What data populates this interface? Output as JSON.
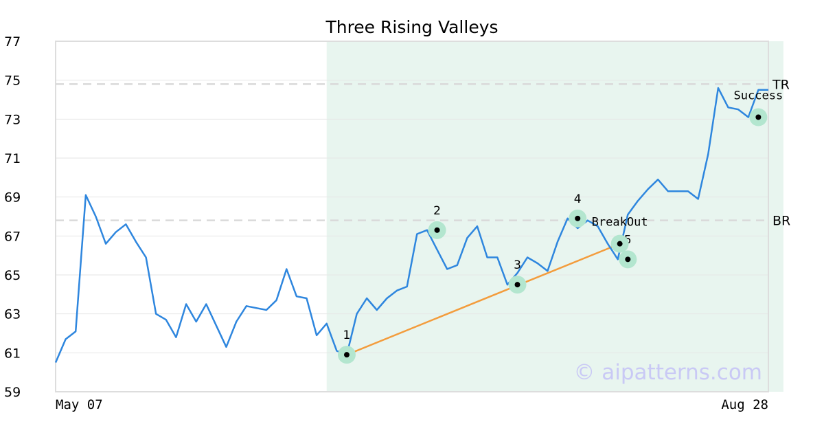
{
  "chart_data": {
    "type": "line",
    "title": "Three Rising Valleys",
    "xlabel": "",
    "ylabel": "",
    "ylim": [
      59,
      77
    ],
    "yticks": [
      "59",
      "61",
      "63",
      "65",
      "67",
      "69",
      "71",
      "73",
      "75",
      "77"
    ],
    "x_first_label": "May 07",
    "x_last_label": "Aug 28",
    "grid": "horizontal",
    "colors": {
      "price": "#2e86de",
      "trend": "#f39c3c",
      "highlight": "#e8f5ef",
      "marker_halo": "#b3e6cf",
      "level_line": "#d9d9d9",
      "frame": "#dddddd",
      "watermark": "#c9c9f5"
    },
    "highlight_range": [
      27,
      72.5
    ],
    "series": [
      {
        "values": [
          60.5,
          61.7,
          62.1,
          69.1,
          68.0,
          66.6,
          67.2,
          67.6,
          66.7,
          65.9,
          63.0,
          62.7,
          61.8,
          63.5,
          62.6,
          63.5,
          62.4,
          61.3,
          62.6,
          63.4,
          63.3,
          63.2,
          63.7,
          65.3,
          63.9,
          63.8,
          61.9,
          62.5,
          61.1,
          60.9,
          63.0,
          63.8,
          63.2,
          63.8,
          64.2,
          64.4,
          67.1,
          67.3,
          66.3,
          65.3,
          65.5,
          66.9,
          67.5,
          65.9,
          65.9,
          64.5,
          65.1,
          65.9,
          65.6,
          65.2,
          66.7,
          67.9,
          67.4,
          67.8,
          67.5,
          66.6,
          65.8,
          68.1,
          68.8,
          69.4,
          69.9,
          69.3,
          69.3,
          69.3,
          68.9,
          71.2,
          74.6,
          73.6,
          73.5,
          73.1,
          74.5,
          74.5
        ]
      }
    ],
    "levels": [
      {
        "label": "TR",
        "value": 74.8
      },
      {
        "label": "BR",
        "value": 67.8
      }
    ],
    "trendline": [
      {
        "x": 29,
        "y": 60.9
      },
      {
        "x": 56.2,
        "y": 66.6
      }
    ],
    "points": [
      {
        "label": "1",
        "x": 29,
        "y": 60.9
      },
      {
        "label": "2",
        "x": 38,
        "y": 67.3
      },
      {
        "label": "3",
        "x": 46,
        "y": 64.5
      },
      {
        "label": "4",
        "x": 52,
        "y": 67.9
      },
      {
        "label": "5",
        "x": 57,
        "y": 65.8
      }
    ],
    "annotations": [
      {
        "text": "BreakOut",
        "x": 56.2,
        "y": 66.6
      },
      {
        "text": "Success",
        "x": 70,
        "y": 73.1
      }
    ],
    "watermark": "© aipatterns.com"
  }
}
